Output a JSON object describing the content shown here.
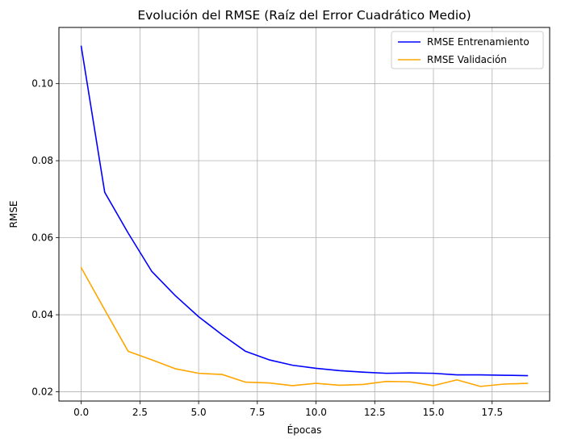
{
  "chart_data": {
    "type": "line",
    "title": "Evolución del RMSE (Raíz del Error Cuadrático Medio)",
    "xlabel": "Épocas",
    "ylabel": "RMSE",
    "xlim": [
      -0.95,
      19.95
    ],
    "ylim": [
      0.0176,
      0.1146
    ],
    "grid": true,
    "legend_position": "top-right",
    "xticks": [
      0.0,
      2.5,
      5.0,
      7.5,
      10.0,
      12.5,
      15.0,
      17.5
    ],
    "xtick_labels": [
      "0.0",
      "2.5",
      "5.0",
      "7.5",
      "10.0",
      "12.5",
      "15.0",
      "17.5"
    ],
    "yticks": [
      0.02,
      0.04,
      0.06,
      0.08,
      0.1
    ],
    "ytick_labels": [
      "0.02",
      "0.04",
      "0.06",
      "0.08",
      "0.10"
    ],
    "x": [
      0,
      1,
      2,
      3,
      4,
      5,
      6,
      7,
      8,
      9,
      10,
      11,
      12,
      13,
      14,
      15,
      16,
      17,
      18,
      19
    ],
    "series": [
      {
        "name": "RMSE Entrenamiento",
        "color": "#0000ff",
        "values": [
          0.1097,
          0.0718,
          0.0612,
          0.0513,
          0.045,
          0.0395,
          0.0348,
          0.0305,
          0.0283,
          0.0269,
          0.0261,
          0.0255,
          0.0251,
          0.0248,
          0.0249,
          0.0248,
          0.0244,
          0.0244,
          0.0243,
          0.0242
        ]
      },
      {
        "name": "RMSE Validación",
        "color": "#ffa500",
        "values": [
          0.0522,
          0.0413,
          0.0305,
          0.0283,
          0.026,
          0.0248,
          0.0245,
          0.0225,
          0.0223,
          0.0216,
          0.0222,
          0.0217,
          0.0219,
          0.0227,
          0.0226,
          0.0216,
          0.0231,
          0.0214,
          0.022,
          0.0222
        ]
      }
    ]
  }
}
